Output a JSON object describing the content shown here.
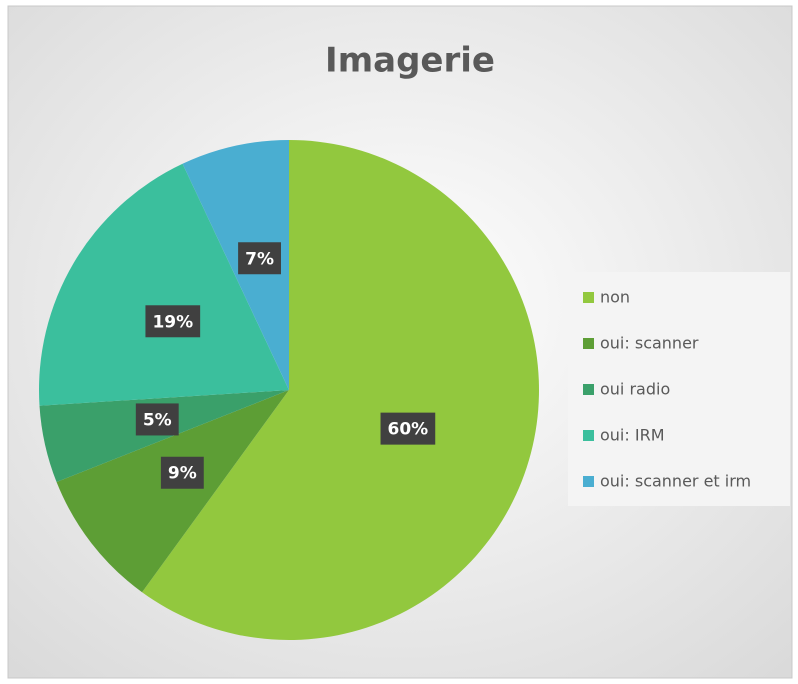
{
  "chart_data": {
    "type": "pie",
    "title": "Imagerie",
    "categories": [
      "non",
      "oui: scanner",
      "oui radio",
      "oui: IRM",
      "oui: scanner et irm"
    ],
    "values": [
      60,
      9,
      5,
      19,
      7
    ],
    "value_labels": [
      "60%",
      "9%",
      "5%",
      "19%",
      "7%"
    ],
    "colors": [
      "#92c83e",
      "#5d9e35",
      "#3aa06a",
      "#3bbf9d",
      "#4aaed1"
    ],
    "legend": "right"
  }
}
